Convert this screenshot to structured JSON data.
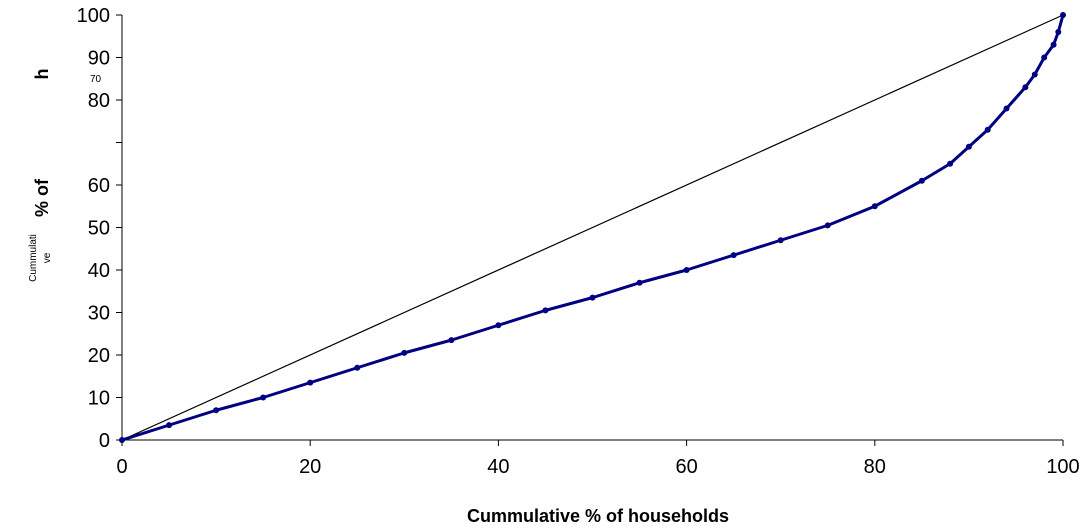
{
  "chart_data": {
    "type": "line",
    "title": "",
    "xlabel": "Cummulative % of households",
    "ylabel_fragments": [
      "Cummulati",
      "ve",
      "% of",
      "h"
    ],
    "stray_label": "70",
    "xlim": [
      0,
      100
    ],
    "ylim": [
      0,
      100
    ],
    "x_ticks": [
      0,
      20,
      40,
      60,
      80,
      100
    ],
    "y_ticks": [
      0,
      10,
      20,
      30,
      40,
      50,
      60,
      80,
      90,
      100
    ],
    "grid": false,
    "legend": "none",
    "colors": {
      "curve": "#000080",
      "equality_line": "#000000",
      "axes": "#000000"
    },
    "series": [
      {
        "role": "equality-line",
        "x": [
          0,
          100
        ],
        "y": [
          0,
          100
        ]
      },
      {
        "role": "lorenz-curve",
        "markers": true,
        "x": [
          0,
          5,
          10,
          15,
          20,
          25,
          30,
          35,
          40,
          45,
          50,
          55,
          60,
          65,
          70,
          75,
          80,
          85,
          88,
          90,
          92,
          94,
          96,
          97,
          98,
          99,
          99.5,
          100
        ],
        "y": [
          0,
          3.5,
          7,
          10,
          13.5,
          17,
          20.5,
          23.5,
          27,
          30.5,
          33.5,
          37,
          40,
          43.5,
          47,
          50.5,
          55,
          61,
          65,
          69,
          73,
          78,
          83,
          86,
          90,
          93,
          96,
          100
        ]
      }
    ]
  }
}
